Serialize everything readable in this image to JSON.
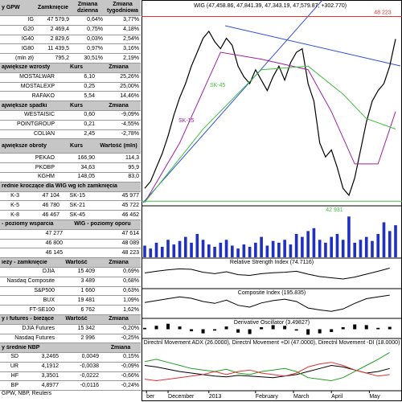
{
  "table": {
    "header": [
      "y GPW",
      "Zamknięcie",
      "Zmiana dzienna",
      "Zmiana tygodniowa"
    ],
    "rows": [
      [
        "IG",
        "47 579,9",
        "0,64%",
        "3,77%"
      ],
      [
        "G20",
        "2 469,4",
        "0,75%",
        "4,18%"
      ],
      [
        "IG40",
        "2 829,6",
        "0,03%",
        "2,54%"
      ],
      [
        "IG80",
        "11 439,5",
        "0,97%",
        "3,16%"
      ],
      [
        "(mln zł)",
        "795,2",
        "30,51%",
        "2,19%"
      ]
    ]
  },
  "sections": [
    {
      "header": [
        "ajwiększe wzrosty",
        "Kurs",
        "Zmiana"
      ],
      "rows": [
        [
          "MOSTALWAR",
          "6,10",
          "25,26%"
        ],
        [
          "MOSTALEXP",
          "0,25",
          "25,00%"
        ],
        [
          "RAFAKO",
          "5,54",
          "14,46%"
        ]
      ]
    },
    {
      "header": [
        "ajwiększe spadki",
        "Kurs",
        "Zmiana"
      ],
      "rows": [
        [
          "WESTAISIC",
          "0,60",
          "-9,09%"
        ],
        [
          "POINTGROUP",
          "0,21",
          "-4,55%"
        ],
        [
          "COLIAN",
          "2,45",
          "-2,78%"
        ]
      ]
    },
    {
      "header": [
        "ajwiększe obroty",
        "Kurs",
        "Wartość (mln)"
      ],
      "rows": [
        [
          "PEKAO",
          "166,90",
          "114,3"
        ],
        [
          "PKOBP",
          "34,63",
          "95,9"
        ],
        [
          "KGHM",
          "148,05",
          "83,0"
        ]
      ]
    },
    {
      "header": [
        "rednie kroczące dla WIG wg ich zamknięcia"
      ],
      "rows": [
        [
          "K-3",
          "47 104",
          "SK-15",
          "45 977"
        ],
        [
          "K-5",
          "46 780",
          "SK-21",
          "45 722"
        ],
        [
          "K-8",
          "46 467",
          "SK-45",
          "46 462"
        ]
      ]
    },
    {
      "header": [
        "- poziomy wsparcia",
        "WIG - poziomy oporu"
      ],
      "rows": [
        [
          "47 277",
          "47 614"
        ],
        [
          "46 800",
          "48 089"
        ],
        [
          "46 145",
          "48 223"
        ]
      ]
    },
    {
      "header": [
        "ieży - zamknięcie",
        "Wartość",
        "Zmiana"
      ],
      "rows": [
        [
          "DJIA",
          "15 409",
          "0,69%"
        ],
        [
          "Nasdaq Composite",
          "3 489",
          "0,68%"
        ],
        [
          "S&P500",
          "1 660",
          "0,63%"
        ],
        [
          "BUX",
          "19 481",
          "1,09%"
        ],
        [
          "FT-SE100",
          "6 762",
          "1,62%"
        ]
      ]
    },
    {
      "header": [
        "y i futures - bieżące",
        "Wartość",
        "Zmiana"
      ],
      "rows": [
        [
          "DJIA Futures",
          "15 342",
          "-0,20%"
        ],
        [
          "Nasdaq Futures",
          "2 996",
          "-0,25%"
        ]
      ]
    },
    {
      "header": [
        "y średnie NBP",
        "Zmiana"
      ],
      "rows": [
        [
          "SD",
          "3,2465",
          "0,0049",
          "0,15%"
        ],
        [
          "UR",
          "4,1912",
          "-0,0038",
          "-0,09%"
        ],
        [
          "HF",
          "3,3501",
          "-0,0222",
          "-0,66%"
        ],
        [
          "BP",
          "4,8977",
          "-0,0116",
          "-0,24%"
        ]
      ]
    }
  ],
  "source": "GPW, NBP, Reuters",
  "chart": {
    "type": "line",
    "title": "WIG (47,458.86, 47,841.39, 47,343.19, 47,579.87, +302.770)",
    "ylim": [
      42800,
      48650
    ],
    "xticks": [
      {
        "value": 0.3,
        "label": "ber"
      },
      {
        "value": 4,
        "label": "December"
      },
      {
        "value": 11,
        "label": "2013"
      },
      {
        "value": 19,
        "label": "February"
      },
      {
        "value": 25.5,
        "label": "March"
      },
      {
        "value": 32,
        "label": "April"
      },
      {
        "value": 38.5,
        "label": "May"
      }
    ],
    "price": {
      "color": "#000000",
      "values": [
        43300,
        43500,
        43900,
        44300,
        44800,
        45400,
        45900,
        46300,
        46800,
        47200,
        47600,
        47800,
        47500,
        47300,
        47600,
        47400,
        46800,
        46500,
        46300,
        46700,
        46400,
        46100,
        46500,
        46800,
        46400,
        46900,
        47200,
        47300,
        46300,
        45800,
        44600,
        44200,
        44400,
        43900,
        43300,
        43100,
        43600,
        44400,
        45200,
        45800,
        46100,
        46300,
        46800,
        47580
      ]
    },
    "ma": [
      {
        "name": "SK-15",
        "color": "#a020a0",
        "x": [
          0,
          6,
          13,
          20,
          28,
          32,
          36,
          40,
          43
        ],
        "values": [
          42900,
          44600,
          47200,
          47000,
          46700,
          45500,
          44000,
          44000,
          45500
        ]
      },
      {
        "name": "SK-45",
        "color": "#40c040",
        "x": [
          0,
          10,
          20,
          28,
          34,
          38,
          43
        ],
        "values": [
          42900,
          45000,
          46700,
          46800,
          46000,
          45300,
          45000
        ]
      }
    ],
    "levels": [
      {
        "label": "48 223",
        "value": 48223,
        "color": "#e03030"
      },
      {
        "label": "42 931",
        "value": 42931,
        "color": "#40c040"
      }
    ],
    "volume": {
      "color": "#2030c0",
      "ylim": [
        0,
        80
      ],
      "values": [
        20,
        15,
        25,
        18,
        30,
        22,
        28,
        35,
        25,
        40,
        30,
        22,
        18,
        25,
        30,
        20,
        15,
        22,
        18,
        25,
        35,
        20,
        28,
        25,
        30,
        22,
        40,
        35,
        45,
        50,
        30,
        25,
        35,
        40,
        30,
        70,
        25,
        30,
        35,
        28,
        40,
        60,
        45,
        55
      ]
    },
    "x2": [
      0,
      2,
      4,
      6,
      8,
      10,
      12,
      14,
      16,
      18,
      20,
      22,
      24,
      26,
      28,
      30,
      32,
      34,
      36,
      38,
      40,
      42
    ],
    "panels": [
      {
        "title": "Relative Strength Index (74.7116)",
        "kind": "line",
        "ylim": [
          0,
          100
        ],
        "series": [
          {
            "color": "#000000",
            "values": [
              55,
              62,
              68,
              72,
              70,
              58,
              52,
              60,
              48,
              45,
              52,
              56,
              58,
              62,
              50,
              40,
              35,
              30,
              38,
              50,
              62,
              75
            ]
          }
        ]
      },
      {
        "title": "Composite Index (195.835)",
        "kind": "line",
        "ylim": [
          -250,
          250
        ],
        "series": [
          {
            "color": "#000000",
            "values": [
              40,
              80,
              120,
              160,
              130,
              60,
              20,
              90,
              -20,
              -60,
              30,
              80,
              110,
              60,
              -80,
              -120,
              -150,
              -100,
              20,
              120,
              160,
              196
            ]
          }
        ]
      },
      {
        "title": "Derivative Oscillator (3.49827)",
        "kind": "bar",
        "ylim": [
          -10,
          10
        ],
        "series": [
          {
            "color": "#000000",
            "values": [
              2,
              5,
              8,
              4,
              -3,
              -6,
              -2,
              4,
              -5,
              -7,
              3,
              6,
              5,
              -2,
              -8,
              -6,
              -4,
              3,
              7,
              6,
              2,
              3.5
            ]
          }
        ]
      },
      {
        "title": "Directnl Movement ADX (26.0000), Directnl Movement +DI (47.0000), Directnl Movement -DI (18.0000)",
        "kind": "line",
        "ylim": [
          0,
          60
        ],
        "series": [
          {
            "color": "#000000",
            "values": [
              30,
              28,
              25,
              22,
              20,
              18,
              16,
              15,
              17,
              16,
              15,
              14,
              16,
              18,
              22,
              26,
              30,
              28,
              24,
              20,
              22,
              26
            ]
          },
          {
            "color": "#20a020",
            "values": [
              35,
              38,
              34,
              30,
              26,
              24,
              22,
              25,
              20,
              18,
              22,
              24,
              26,
              22,
              14,
              12,
              10,
              14,
              22,
              30,
              38,
              47
            ]
          },
          {
            "color": "#e03030",
            "values": [
              12,
              10,
              12,
              14,
              16,
              18,
              22,
              18,
              22,
              24,
              20,
              18,
              16,
              20,
              28,
              32,
              34,
              30,
              24,
              20,
              16,
              18
            ]
          }
        ]
      }
    ]
  }
}
